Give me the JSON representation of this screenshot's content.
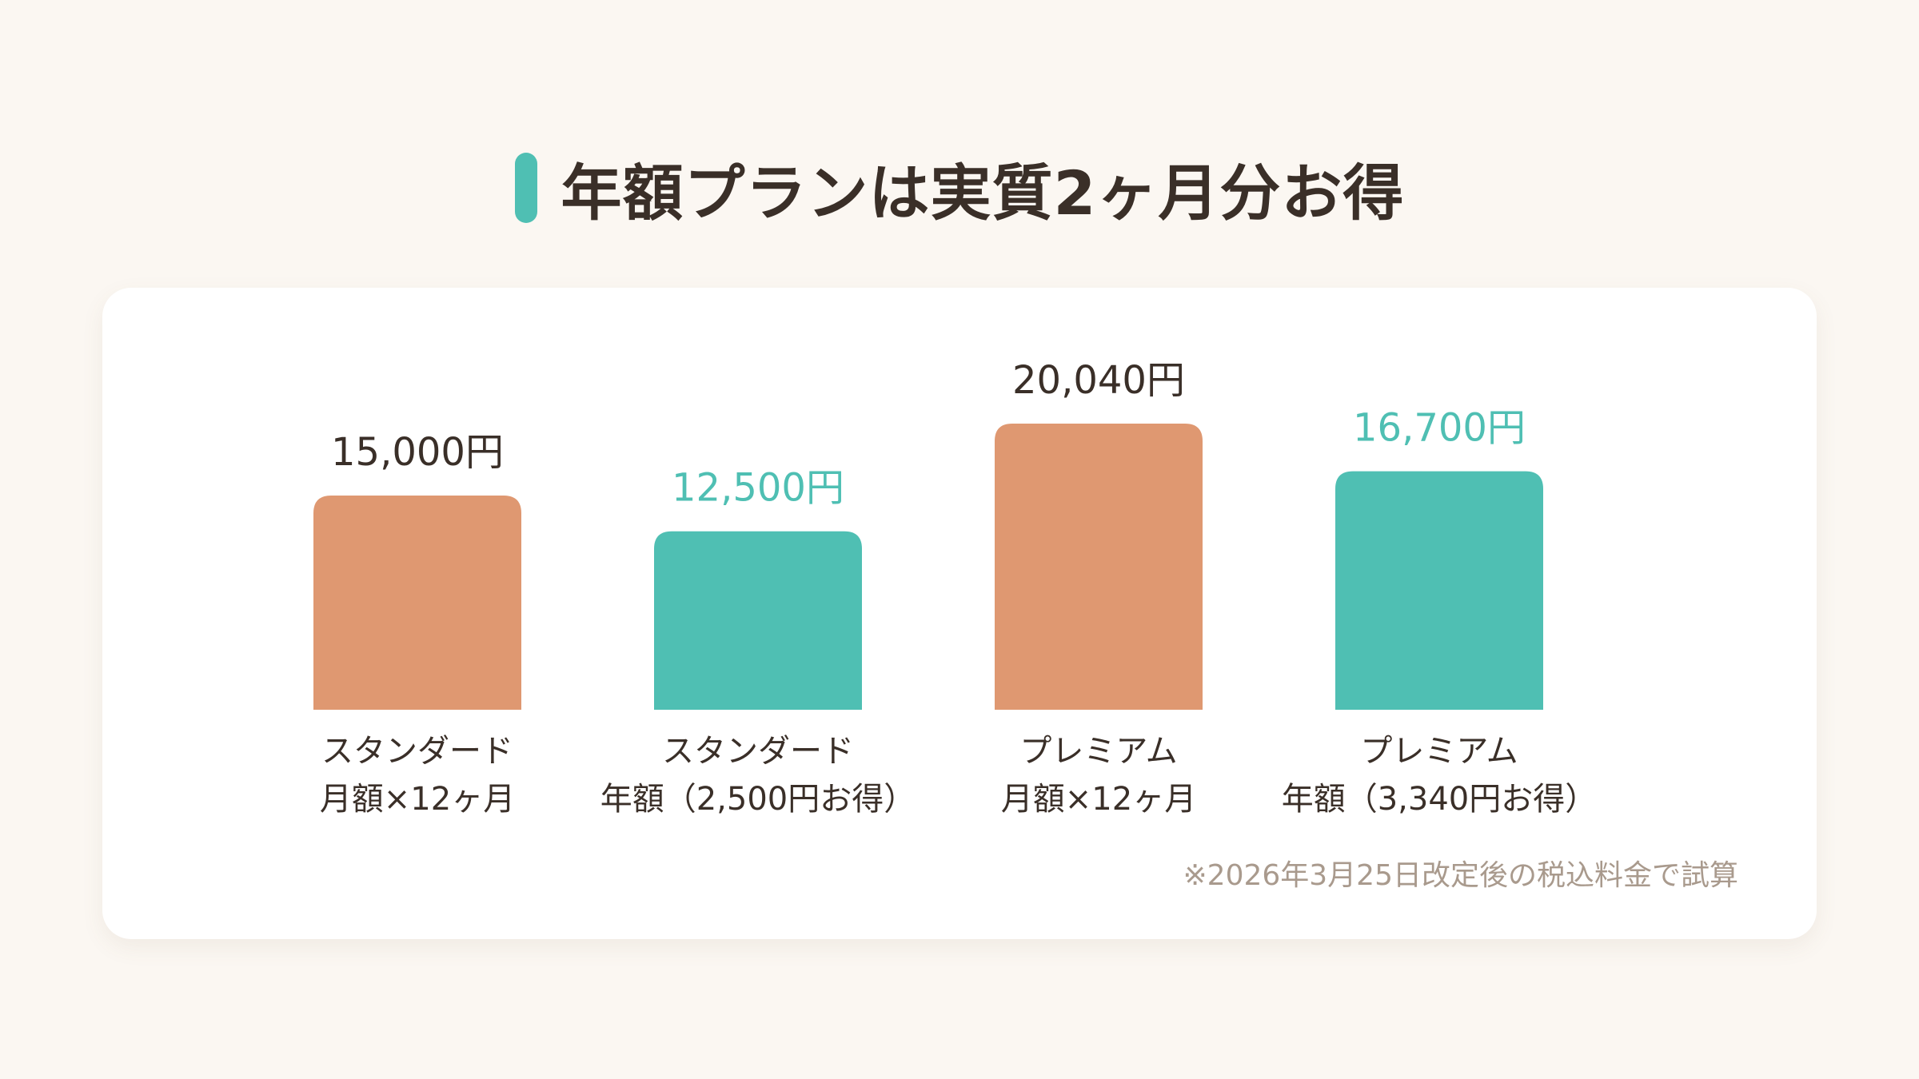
{
  "title": "年額プランは実質2ヶ月分お得",
  "footnote": "※2026年3月25日改定後の税込料金で試算",
  "colors": {
    "background": "#fbf7f2",
    "monthly": "#df9871",
    "annual": "#4fbfb3",
    "text": "#3a2f28",
    "note": "#a99a8d"
  },
  "chart_data": {
    "type": "bar",
    "categories": [
      [
        "スタンダード",
        "月額×12ヶ月"
      ],
      [
        "スタンダード",
        "年額（2,500円お得）"
      ],
      [
        "プレミアム",
        "月額×12ヶ月"
      ],
      [
        "プレミアム",
        "年額（3,340円お得）"
      ]
    ],
    "values": [
      15000,
      12500,
      20040,
      16700
    ],
    "value_labels": [
      "15,000円",
      "12,500円",
      "20,040円",
      "16,700円"
    ],
    "kinds": [
      "monthly",
      "annual",
      "monthly",
      "annual"
    ],
    "ylim": [
      0,
      20040
    ],
    "grid": false,
    "legend": "none"
  }
}
